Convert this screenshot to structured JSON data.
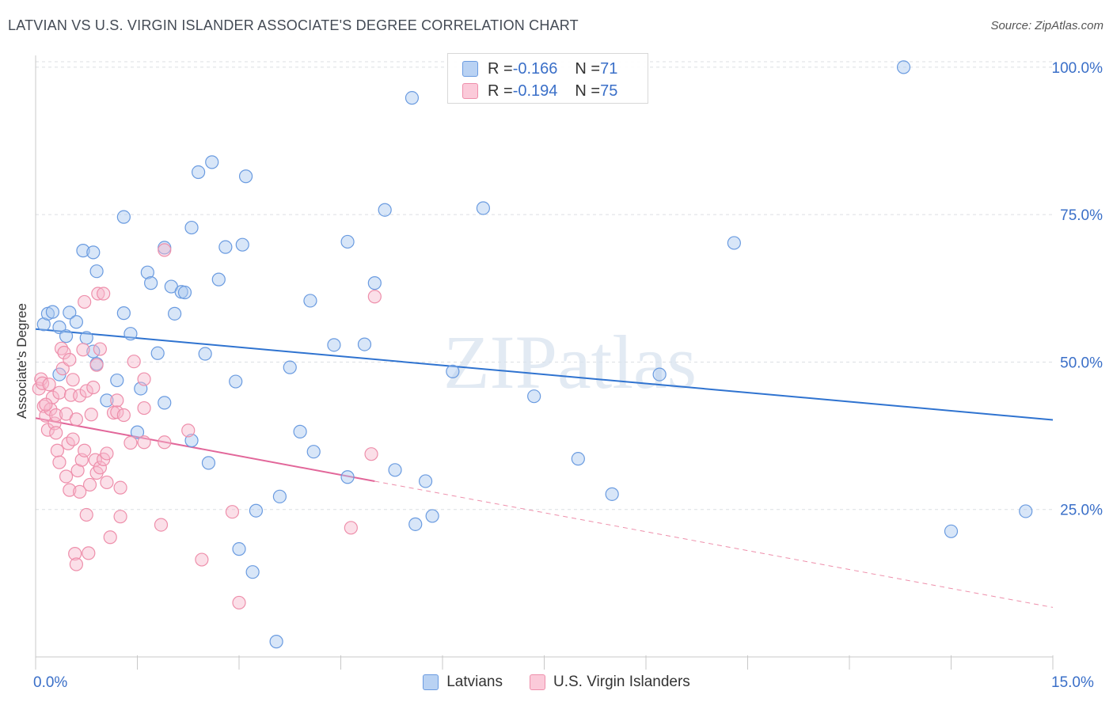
{
  "title": "LATVIAN VS U.S. VIRGIN ISLANDER ASSOCIATE'S DEGREE CORRELATION CHART",
  "source": "Source: ZipAtlas.com",
  "watermark": "ZIPatlas",
  "legend_top": [
    {
      "r_label": "R = ",
      "r_value": "-0.166",
      "n_label": "N = ",
      "n_value": "71",
      "color": "#a9c8f0"
    },
    {
      "r_label": "R = ",
      "r_value": "-0.194",
      "n_label": "N = ",
      "n_value": "75",
      "color": "#f7b8cb"
    }
  ],
  "chart_data": {
    "type": "scatter",
    "title": "LATVIAN VS U.S. VIRGIN ISLANDER ASSOCIATE'S DEGREE CORRELATION CHART",
    "xlabel": "",
    "ylabel": "Associate's Degree",
    "xlim": [
      0,
      15
    ],
    "ylim": [
      0,
      102
    ],
    "x_tick_labels": [
      "0.0%",
      "15.0%"
    ],
    "y_ticks": [
      25,
      50,
      75,
      100
    ],
    "y_tick_labels": [
      "25.0%",
      "50.0%",
      "75.0%",
      "100.0%"
    ],
    "grid": true,
    "legend_position": "bottom",
    "series": [
      {
        "name": "Latvians",
        "color": "#6a9be0",
        "fill": "#a9c8f0",
        "trend": {
          "x0": 0,
          "y0": 55.6,
          "x1": 15,
          "y1": 40.2,
          "dashed_from": null
        },
        "points": [
          [
            0.12,
            56.4
          ],
          [
            0.18,
            58.2
          ],
          [
            0.25,
            58.5
          ],
          [
            0.35,
            55.9
          ],
          [
            0.45,
            54.4
          ],
          [
            0.5,
            58.4
          ],
          [
            0.6,
            56.8
          ],
          [
            0.7,
            68.9
          ],
          [
            0.85,
            68.6
          ],
          [
            0.9,
            65.4
          ],
          [
            0.75,
            54.1
          ],
          [
            0.85,
            51.8
          ],
          [
            0.9,
            49.7
          ],
          [
            1.05,
            43.5
          ],
          [
            1.2,
            46.9
          ],
          [
            1.3,
            58.3
          ],
          [
            1.4,
            54.8
          ],
          [
            1.5,
            38.1
          ],
          [
            1.55,
            45.5
          ],
          [
            1.65,
            65.2
          ],
          [
            1.7,
            63.4
          ],
          [
            1.8,
            51.5
          ],
          [
            1.9,
            43.1
          ],
          [
            1.9,
            69.4
          ],
          [
            1.3,
            74.6
          ],
          [
            2.0,
            62.8
          ],
          [
            2.05,
            58.2
          ],
          [
            2.15,
            61.9
          ],
          [
            2.3,
            72.8
          ],
          [
            2.3,
            36.7
          ],
          [
            2.4,
            82.2
          ],
          [
            2.5,
            51.4
          ],
          [
            2.55,
            32.9
          ],
          [
            2.6,
            83.9
          ],
          [
            2.7,
            64.0
          ],
          [
            2.8,
            69.5
          ],
          [
            2.95,
            46.7
          ],
          [
            3.0,
            18.3
          ],
          [
            3.05,
            69.9
          ],
          [
            3.1,
            81.5
          ],
          [
            3.2,
            14.4
          ],
          [
            3.25,
            24.8
          ],
          [
            3.55,
            2.6
          ],
          [
            3.6,
            27.2
          ],
          [
            3.75,
            49.1
          ],
          [
            3.9,
            38.2
          ],
          [
            4.05,
            60.4
          ],
          [
            4.1,
            34.8
          ],
          [
            4.4,
            52.9
          ],
          [
            4.6,
            30.5
          ],
          [
            4.6,
            70.4
          ],
          [
            4.85,
            53.0
          ],
          [
            5.0,
            63.4
          ],
          [
            5.15,
            75.8
          ],
          [
            5.3,
            31.7
          ],
          [
            5.55,
            94.8
          ],
          [
            5.6,
            22.5
          ],
          [
            5.75,
            29.8
          ],
          [
            5.85,
            23.9
          ],
          [
            6.15,
            48.4
          ],
          [
            6.6,
            76.1
          ],
          [
            7.35,
            44.2
          ],
          [
            8.0,
            33.6
          ],
          [
            8.5,
            27.6
          ],
          [
            9.2,
            47.9
          ],
          [
            10.3,
            70.2
          ],
          [
            12.8,
            100.0
          ],
          [
            13.5,
            21.3
          ],
          [
            14.6,
            24.7
          ],
          [
            0.35,
            47.9
          ],
          [
            2.2,
            61.8
          ]
        ]
      },
      {
        "name": "U.S. Virgin Islanders",
        "color": "#ee8fab",
        "fill": "#f7b8cb",
        "trend": {
          "x0": 0,
          "y0": 40.5,
          "x1": 15,
          "y1": 8.4,
          "dashed_from": 5.0
        },
        "points": [
          [
            0.05,
            45.5
          ],
          [
            0.08,
            47.1
          ],
          [
            0.1,
            46.4
          ],
          [
            0.12,
            42.5
          ],
          [
            0.15,
            40.9
          ],
          [
            0.18,
            38.5
          ],
          [
            0.2,
            46.2
          ],
          [
            0.22,
            42.0
          ],
          [
            0.25,
            44.0
          ],
          [
            0.28,
            39.6
          ],
          [
            0.3,
            41.0
          ],
          [
            0.3,
            38.0
          ],
          [
            0.32,
            35.0
          ],
          [
            0.35,
            33.0
          ],
          [
            0.35,
            44.8
          ],
          [
            0.38,
            52.3
          ],
          [
            0.4,
            48.9
          ],
          [
            0.42,
            51.6
          ],
          [
            0.45,
            41.2
          ],
          [
            0.45,
            30.6
          ],
          [
            0.48,
            36.2
          ],
          [
            0.5,
            28.3
          ],
          [
            0.5,
            50.4
          ],
          [
            0.52,
            44.4
          ],
          [
            0.55,
            36.9
          ],
          [
            0.55,
            47.0
          ],
          [
            0.58,
            17.5
          ],
          [
            0.6,
            15.7
          ],
          [
            0.6,
            40.3
          ],
          [
            0.62,
            31.6
          ],
          [
            0.65,
            44.3
          ],
          [
            0.68,
            33.4
          ],
          [
            0.7,
            52.1
          ],
          [
            0.72,
            60.2
          ],
          [
            0.72,
            35.0
          ],
          [
            0.75,
            45.1
          ],
          [
            0.75,
            24.1
          ],
          [
            0.78,
            17.6
          ],
          [
            0.8,
            29.2
          ],
          [
            0.82,
            41.1
          ],
          [
            0.85,
            45.7
          ],
          [
            0.88,
            33.4
          ],
          [
            0.9,
            31.2
          ],
          [
            0.9,
            49.5
          ],
          [
            0.92,
            61.6
          ],
          [
            0.95,
            52.2
          ],
          [
            0.95,
            32.1
          ],
          [
            1.0,
            61.6
          ],
          [
            1.0,
            33.5
          ],
          [
            1.05,
            29.6
          ],
          [
            1.05,
            34.5
          ],
          [
            1.1,
            20.3
          ],
          [
            1.15,
            41.4
          ],
          [
            1.2,
            41.5
          ],
          [
            1.2,
            43.5
          ],
          [
            1.25,
            28.7
          ],
          [
            1.25,
            23.8
          ],
          [
            1.3,
            41.0
          ],
          [
            1.4,
            36.3
          ],
          [
            1.45,
            50.1
          ],
          [
            1.6,
            42.2
          ],
          [
            1.6,
            47.1
          ],
          [
            1.6,
            36.4
          ],
          [
            1.85,
            22.4
          ],
          [
            1.9,
            36.4
          ],
          [
            2.25,
            38.4
          ],
          [
            2.45,
            16.5
          ],
          [
            2.9,
            24.6
          ],
          [
            3.0,
            9.2
          ],
          [
            4.65,
            21.9
          ],
          [
            4.95,
            34.4
          ],
          [
            5.0,
            61.1
          ],
          [
            1.9,
            69.0
          ],
          [
            0.15,
            42.8
          ],
          [
            0.65,
            28.0
          ]
        ]
      }
    ]
  }
}
